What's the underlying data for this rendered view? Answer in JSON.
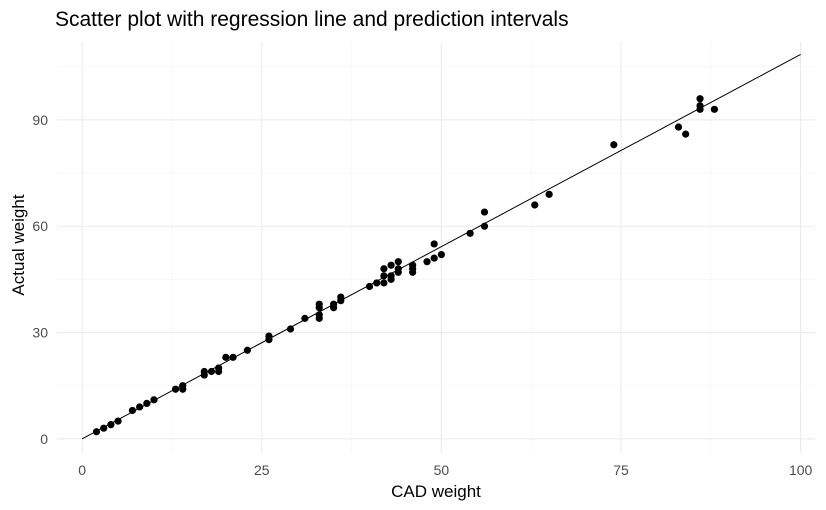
{
  "chart_data": {
    "type": "scatter",
    "title": "Scatter plot with regression line and prediction intervals",
    "xlabel": "CAD weight",
    "ylabel": "Actual weight",
    "xlim": [
      -3.5,
      102
    ],
    "ylim": [
      -4,
      112
    ],
    "x_ticks": [
      0,
      25,
      50,
      75,
      100
    ],
    "y_ticks": [
      0,
      30,
      60,
      90
    ],
    "grid": true,
    "legend": "none",
    "regression_line": {
      "x": [
        0,
        100
      ],
      "y": [
        0,
        108.5
      ]
    },
    "colors": {
      "points": "#000000",
      "line": "#000000",
      "grid": "#ebebeb"
    },
    "points": [
      {
        "x": 2,
        "y": 2
      },
      {
        "x": 3,
        "y": 3
      },
      {
        "x": 4,
        "y": 4
      },
      {
        "x": 5,
        "y": 5
      },
      {
        "x": 7,
        "y": 8
      },
      {
        "x": 8,
        "y": 9
      },
      {
        "x": 9,
        "y": 10
      },
      {
        "x": 10,
        "y": 11
      },
      {
        "x": 13,
        "y": 14
      },
      {
        "x": 14,
        "y": 14
      },
      {
        "x": 14,
        "y": 15
      },
      {
        "x": 17,
        "y": 18
      },
      {
        "x": 17,
        "y": 19
      },
      {
        "x": 18,
        "y": 19
      },
      {
        "x": 19,
        "y": 19
      },
      {
        "x": 19,
        "y": 20
      },
      {
        "x": 20,
        "y": 23
      },
      {
        "x": 21,
        "y": 23
      },
      {
        "x": 23,
        "y": 25
      },
      {
        "x": 26,
        "y": 28
      },
      {
        "x": 26,
        "y": 29
      },
      {
        "x": 29,
        "y": 31
      },
      {
        "x": 31,
        "y": 34
      },
      {
        "x": 33,
        "y": 34
      },
      {
        "x": 33,
        "y": 35
      },
      {
        "x": 33,
        "y": 37
      },
      {
        "x": 33,
        "y": 38
      },
      {
        "x": 35,
        "y": 37
      },
      {
        "x": 35,
        "y": 38
      },
      {
        "x": 36,
        "y": 39
      },
      {
        "x": 36,
        "y": 40
      },
      {
        "x": 40,
        "y": 43
      },
      {
        "x": 41,
        "y": 44
      },
      {
        "x": 42,
        "y": 44
      },
      {
        "x": 42,
        "y": 46
      },
      {
        "x": 42,
        "y": 48
      },
      {
        "x": 43,
        "y": 45
      },
      {
        "x": 43,
        "y": 46
      },
      {
        "x": 43,
        "y": 49
      },
      {
        "x": 44,
        "y": 47
      },
      {
        "x": 44,
        "y": 48
      },
      {
        "x": 44,
        "y": 50
      },
      {
        "x": 46,
        "y": 47
      },
      {
        "x": 46,
        "y": 48
      },
      {
        "x": 46,
        "y": 49
      },
      {
        "x": 48,
        "y": 50
      },
      {
        "x": 49,
        "y": 51
      },
      {
        "x": 49,
        "y": 55
      },
      {
        "x": 50,
        "y": 52
      },
      {
        "x": 54,
        "y": 58
      },
      {
        "x": 56,
        "y": 60
      },
      {
        "x": 56,
        "y": 64
      },
      {
        "x": 63,
        "y": 66
      },
      {
        "x": 65,
        "y": 69
      },
      {
        "x": 74,
        "y": 83
      },
      {
        "x": 83,
        "y": 88
      },
      {
        "x": 84,
        "y": 86
      },
      {
        "x": 86,
        "y": 93
      },
      {
        "x": 86,
        "y": 94
      },
      {
        "x": 86,
        "y": 96
      },
      {
        "x": 88,
        "y": 93
      }
    ]
  }
}
